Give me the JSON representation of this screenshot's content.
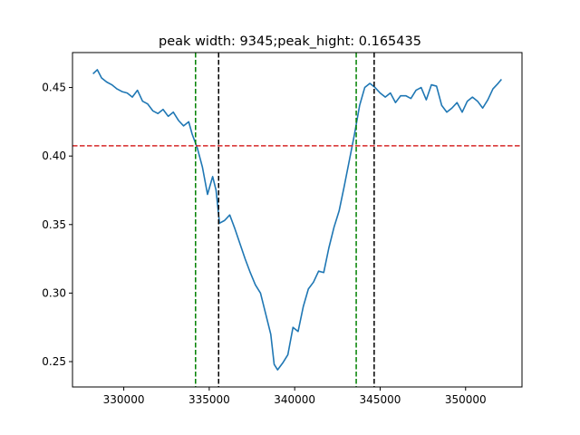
{
  "chart_data": {
    "type": "line",
    "title": "peak width: 9345;peak_hight: 0.165435",
    "xlabel": "",
    "ylabel": "",
    "xlim": [
      327000,
      353300
    ],
    "ylim": [
      0.2315,
      0.4755
    ],
    "xticks": [
      330000,
      335000,
      340000,
      345000,
      350000
    ],
    "xtick_labels": [
      "330000",
      "335000",
      "340000",
      "345000",
      "350000"
    ],
    "yticks": [
      0.25,
      0.3,
      0.35,
      0.4,
      0.45
    ],
    "ytick_labels": [
      "0.25",
      "0.30",
      "0.35",
      "0.40",
      "0.45"
    ],
    "grid": false,
    "series": [
      {
        "color": "#1f77b4",
        "x": [
          328200,
          328450,
          328700,
          329000,
          329300,
          329600,
          329900,
          330200,
          330500,
          330800,
          331100,
          331400,
          331700,
          332000,
          332300,
          332600,
          332900,
          333200,
          333500,
          333800,
          334000,
          334300,
          334600,
          334900,
          335200,
          335400,
          335600,
          335900,
          336200,
          336500,
          336800,
          337100,
          337400,
          337700,
          338000,
          338300,
          338600,
          338800,
          339000,
          339300,
          339600,
          339900,
          340200,
          340500,
          340800,
          341100,
          341400,
          341700,
          342000,
          342300,
          342600,
          342900,
          343200,
          343500,
          343800,
          344100,
          344400,
          344700,
          345000,
          345300,
          345600,
          345900,
          346200,
          346500,
          346800,
          347100,
          347400,
          347700,
          348000,
          348300,
          348600,
          348900,
          349200,
          349500,
          349800,
          350100,
          350400,
          350700,
          351000,
          351300,
          351600,
          351900,
          352100
        ],
        "y": [
          0.46,
          0.463,
          0.457,
          0.454,
          0.452,
          0.449,
          0.447,
          0.446,
          0.443,
          0.448,
          0.44,
          0.438,
          0.433,
          0.431,
          0.434,
          0.429,
          0.432,
          0.426,
          0.422,
          0.425,
          0.416,
          0.406,
          0.392,
          0.372,
          0.385,
          0.375,
          0.351,
          0.353,
          0.357,
          0.347,
          0.336,
          0.325,
          0.315,
          0.306,
          0.3,
          0.285,
          0.27,
          0.248,
          0.244,
          0.249,
          0.255,
          0.275,
          0.272,
          0.29,
          0.303,
          0.308,
          0.316,
          0.315,
          0.333,
          0.348,
          0.36,
          0.378,
          0.397,
          0.416,
          0.437,
          0.45,
          0.453,
          0.45,
          0.446,
          0.443,
          0.446,
          0.439,
          0.444,
          0.444,
          0.442,
          0.448,
          0.45,
          0.441,
          0.452,
          0.451,
          0.437,
          0.432,
          0.435,
          0.439,
          0.432,
          0.44,
          0.443,
          0.44,
          0.435,
          0.441,
          0.449,
          0.453,
          0.456
        ]
      }
    ],
    "hlines": [
      {
        "y": 0.4075,
        "color": "#d62728",
        "style": "dashed"
      }
    ],
    "vlines": [
      {
        "x": 334200,
        "color": "#008000",
        "style": "dashed"
      },
      {
        "x": 335550,
        "color": "#000000",
        "style": "dashed"
      },
      {
        "x": 343600,
        "color": "#008000",
        "style": "dashed"
      },
      {
        "x": 344650,
        "color": "#000000",
        "style": "dashed"
      }
    ]
  }
}
